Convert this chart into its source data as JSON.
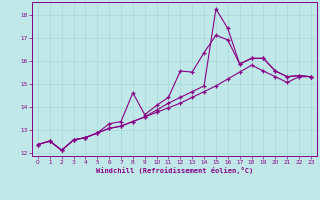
{
  "xlabel": "Windchill (Refroidissement éolien,°C)",
  "background_color": "#c0e8e8",
  "grid_color": "#a8d8d8",
  "line_color": "#880088",
  "xlim": [
    -0.5,
    23.5
  ],
  "ylim": [
    11.85,
    18.55
  ],
  "xticks": [
    0,
    1,
    2,
    3,
    4,
    5,
    6,
    7,
    8,
    9,
    10,
    11,
    12,
    13,
    14,
    15,
    16,
    17,
    18,
    19,
    20,
    21,
    22,
    23
  ],
  "yticks": [
    12,
    13,
    14,
    15,
    16,
    17,
    18
  ],
  "line1_x": [
    0,
    1,
    2,
    3,
    4,
    5,
    6,
    7,
    8,
    9,
    10,
    11,
    12,
    13,
    14,
    15,
    16,
    17,
    18,
    19,
    20,
    21,
    22,
    23
  ],
  "line1_y": [
    12.35,
    12.5,
    12.1,
    12.55,
    12.65,
    12.85,
    13.25,
    13.35,
    14.6,
    13.65,
    14.05,
    14.4,
    15.55,
    15.5,
    16.35,
    17.1,
    16.9,
    15.85,
    16.1,
    16.1,
    15.55,
    15.3,
    15.35,
    15.3
  ],
  "line2_x": [
    0,
    1,
    2,
    3,
    4,
    5,
    6,
    7,
    8,
    9,
    10,
    11,
    12,
    13,
    14,
    15,
    16,
    17,
    18,
    19,
    20,
    21,
    22,
    23
  ],
  "line2_y": [
    12.35,
    12.5,
    12.1,
    12.55,
    12.65,
    12.85,
    13.05,
    13.15,
    13.35,
    13.55,
    13.85,
    14.15,
    14.4,
    14.65,
    14.9,
    18.25,
    17.4,
    15.85,
    16.1,
    16.1,
    15.55,
    15.3,
    15.35,
    15.3
  ],
  "line3_x": [
    0,
    1,
    2,
    3,
    4,
    5,
    6,
    7,
    8,
    9,
    10,
    11,
    12,
    13,
    14,
    15,
    16,
    17,
    18,
    19,
    20,
    21,
    22,
    23
  ],
  "line3_y": [
    12.35,
    12.5,
    12.1,
    12.55,
    12.65,
    12.85,
    13.05,
    13.15,
    13.35,
    13.55,
    13.75,
    13.95,
    14.15,
    14.4,
    14.65,
    14.9,
    15.2,
    15.5,
    15.8,
    15.55,
    15.3,
    15.05,
    15.3,
    15.3
  ]
}
